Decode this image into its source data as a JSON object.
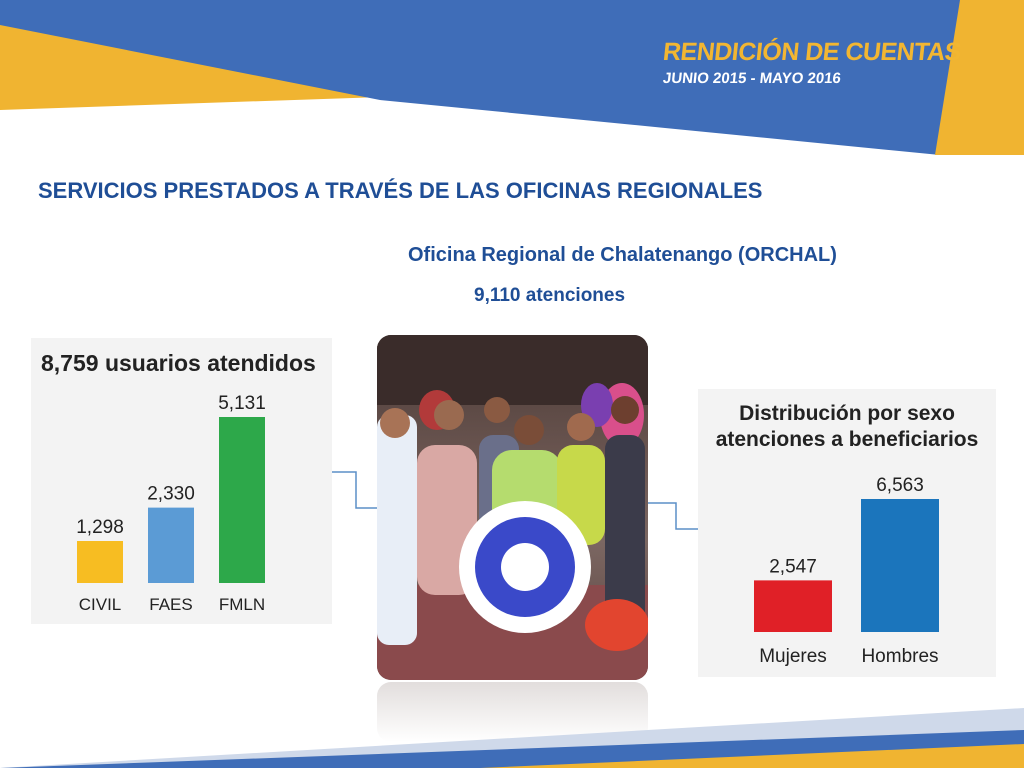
{
  "header": {
    "banner_title": "RENDICIÓN DE CUENTAS",
    "banner_period": "JUNIO 2015 - MAYO 2016"
  },
  "page": {
    "title": "SERVICIOS PRESTADOS A TRAVÉS DE LAS OFICINAS REGIONALES",
    "office": "Oficina Regional de Chalatenango (ORCHAL)",
    "atenciones": "9,110 atenciones"
  },
  "colors": {
    "blue_banner": "#3f6db8",
    "yellow_banner": "#f0b431",
    "title_blue": "#1f4e96",
    "civil": "#f7bd22",
    "faes": "#5b9bd5",
    "fmln": "#2da84a",
    "mujeres": "#e02027",
    "hombres": "#1b75bc"
  },
  "chart_data": [
    {
      "type": "bar",
      "title": "8,759 usuarios atendidos",
      "categories": [
        "CIVIL",
        "FAES",
        "FMLN"
      ],
      "values": [
        1298,
        2330,
        5131
      ],
      "value_labels": [
        "1,298",
        "2,330",
        "5,131"
      ],
      "colors": [
        "#f7bd22",
        "#5b9bd5",
        "#2da84a"
      ],
      "xlabel": "",
      "ylabel": "",
      "ylim": [
        0,
        5131
      ],
      "grid": false
    },
    {
      "type": "bar",
      "title": "Distribución por sexo atenciones a beneficiarios",
      "title_lines": [
        "Distribución por sexo",
        "atenciones a beneficiarios"
      ],
      "categories": [
        "Mujeres",
        "Hombres"
      ],
      "values": [
        2547,
        6563
      ],
      "value_labels": [
        "2,547",
        "6,563"
      ],
      "colors": [
        "#e02027",
        "#1b75bc"
      ],
      "xlabel": "",
      "ylabel": "",
      "ylim": [
        0,
        6563
      ],
      "grid": false
    }
  ]
}
